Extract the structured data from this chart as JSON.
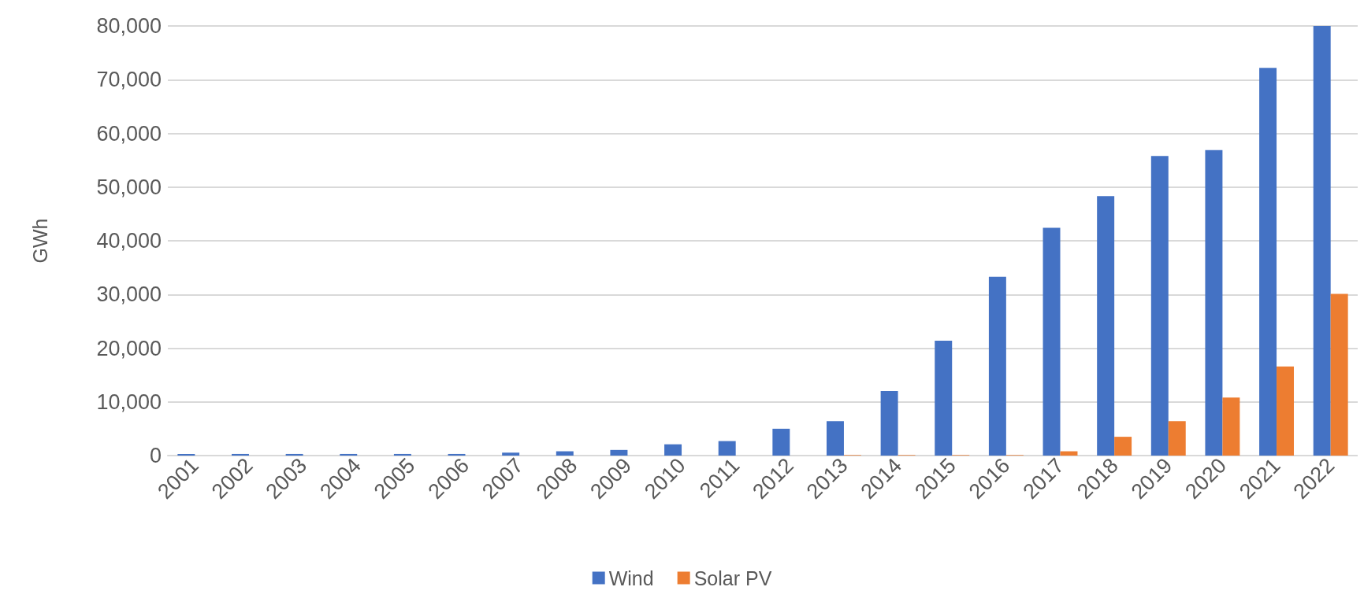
{
  "chart_data": {
    "type": "bar",
    "ylabel": "GWh",
    "categories": [
      "2001",
      "2002",
      "2003",
      "2004",
      "2005",
      "2006",
      "2007",
      "2008",
      "2009",
      "2010",
      "2011",
      "2012",
      "2013",
      "2014",
      "2015",
      "2016",
      "2017",
      "2018",
      "2019",
      "2020",
      "2021",
      "2022"
    ],
    "series": [
      {
        "name": "Wind",
        "color": "#4472c4",
        "values": [
          300,
          300,
          300,
          300,
          300,
          300,
          550,
          800,
          1050,
          2100,
          2700,
          5000,
          6400,
          12000,
          21400,
          33300,
          42400,
          48300,
          55800,
          56900,
          72200,
          80000
        ]
      },
      {
        "name": "Solar PV",
        "color": "#ed7d31",
        "values": [
          0,
          0,
          0,
          0,
          0,
          0,
          0,
          0,
          0,
          0,
          0,
          0,
          100,
          100,
          100,
          100,
          800,
          3500,
          6400,
          10800,
          16600,
          30100
        ]
      }
    ],
    "ylim": [
      0,
      80000
    ],
    "yticks": [
      {
        "value": 0,
        "label": "0"
      },
      {
        "value": 10000,
        "label": "10,000"
      },
      {
        "value": 20000,
        "label": "20,000"
      },
      {
        "value": 30000,
        "label": "30,000"
      },
      {
        "value": 40000,
        "label": "40,000"
      },
      {
        "value": 50000,
        "label": "50,000"
      },
      {
        "value": 60000,
        "label": "60,000"
      },
      {
        "value": 70000,
        "label": "70,000"
      },
      {
        "value": 80000,
        "label": "80,000"
      }
    ],
    "grid": "y",
    "legend": "bottom"
  }
}
